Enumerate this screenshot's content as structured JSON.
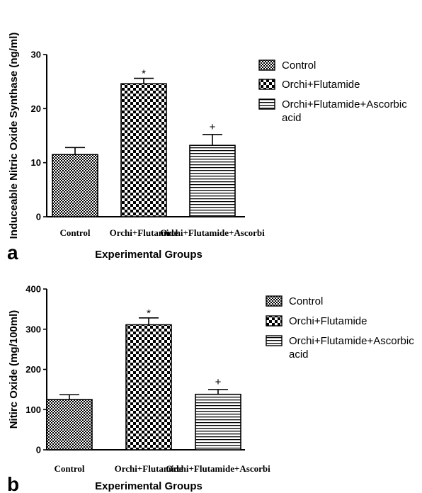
{
  "colors": {
    "ink": "#000000",
    "background": "#ffffff"
  },
  "chart_data": [
    {
      "type": "bar",
      "panel_label": "a",
      "title": "",
      "xlabel": "Experimental Groups",
      "ylabel": "Induceable Nitric Oxide Synthase (ng/ml)",
      "categories": [
        "Control",
        "Orchi+Flutamide",
        "Orchi+Flutamide+Ascorbi"
      ],
      "values": [
        11.5,
        24.6,
        13.2
      ],
      "errors": [
        1.3,
        1.0,
        2.0
      ],
      "patterns": [
        "fine-checker",
        "coarse-checker",
        "horizontal-stripes"
      ],
      "annotations": [
        "",
        "*",
        "+"
      ],
      "ylim": [
        0,
        30
      ],
      "yticks": [
        0,
        10,
        20,
        30
      ],
      "grid": false,
      "legend": {
        "position": "right",
        "entries": [
          "Control",
          "Orchi+Flutamide",
          "Orchi+Flutamide+Ascorbic acid"
        ],
        "lines": [
          [
            "Control"
          ],
          [
            "Orchi+Flutamide"
          ],
          [
            "Orchi+Flutamide+Ascorbic",
            "acid"
          ]
        ]
      }
    },
    {
      "type": "bar",
      "panel_label": "b",
      "title": "",
      "xlabel": "Experimental Groups",
      "ylabel": "Nitirc Oxide (mg/100ml)",
      "categories": [
        "Control",
        "Orchi+Flutamide",
        "Orchi+Flutamide+Ascorbi"
      ],
      "values": [
        125,
        311,
        138
      ],
      "errors": [
        12,
        17,
        12
      ],
      "patterns": [
        "fine-checker",
        "coarse-checker",
        "horizontal-stripes"
      ],
      "annotations": [
        "",
        "*",
        "+"
      ],
      "ylim": [
        0,
        400
      ],
      "yticks": [
        0,
        100,
        200,
        300,
        400
      ],
      "grid": false,
      "legend": {
        "position": "right",
        "entries": [
          "Control",
          "Orchi+Flutamide",
          "Orchi+Flutamide+Ascorbic acid"
        ],
        "lines": [
          [
            "Control"
          ],
          [
            "Orchi+Flutamide"
          ],
          [
            "Orchi+Flutamide+Ascorbic",
            "acid"
          ]
        ]
      }
    }
  ]
}
